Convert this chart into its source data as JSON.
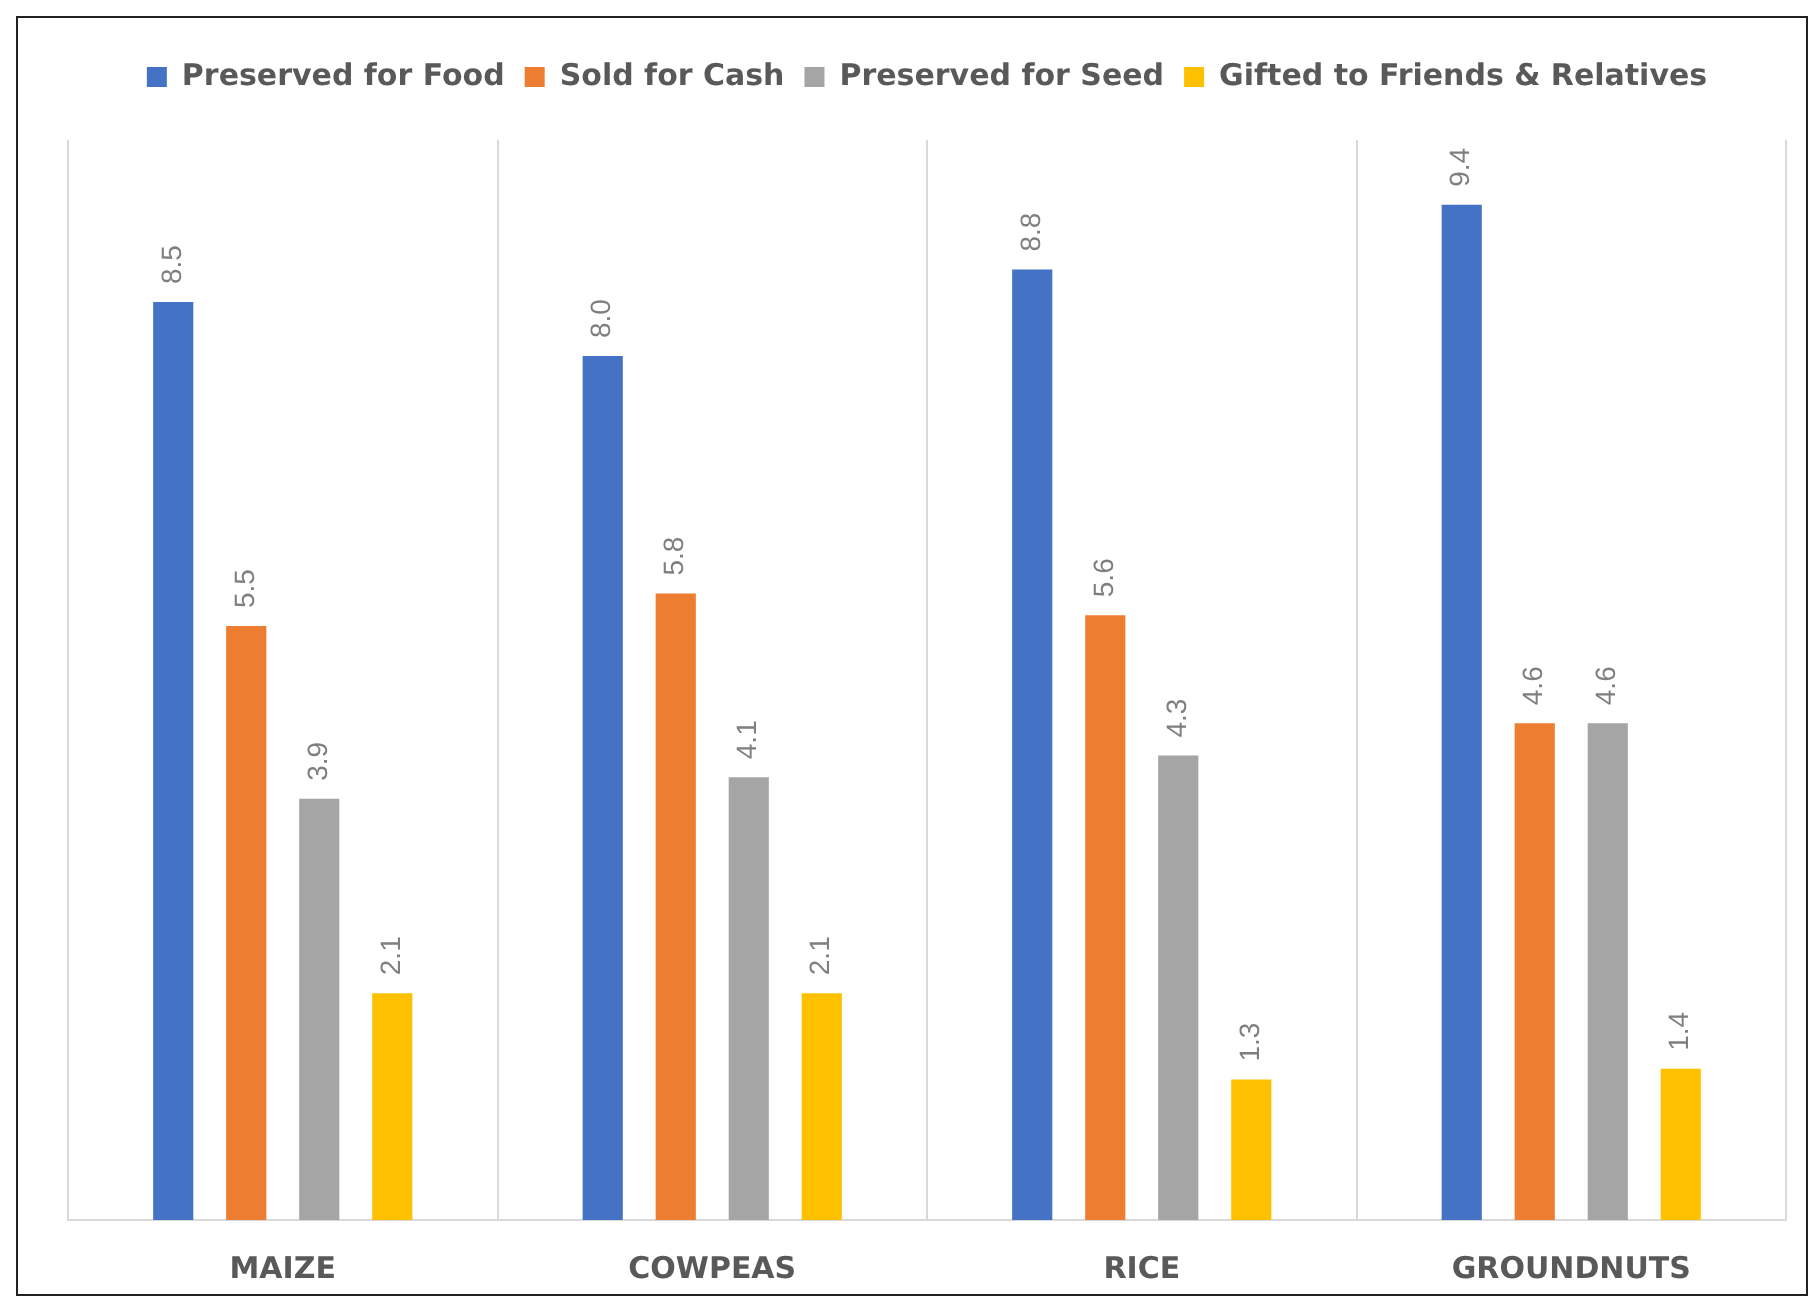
{
  "chart_data": {
    "type": "bar",
    "categories": [
      "MAIZE",
      "COWPEAS",
      "RICE",
      "GROUNDNUTS"
    ],
    "series": [
      {
        "name": "Preserved for Food",
        "color": "#4472c4",
        "values": [
          8.5,
          8.0,
          8.8,
          9.4
        ],
        "value_labels": [
          "8.5",
          "8.0",
          "8.8",
          "9.4"
        ]
      },
      {
        "name": "Sold for Cash",
        "color": "#ed7d31",
        "values": [
          5.5,
          5.8,
          5.6,
          4.6
        ],
        "value_labels": [
          "5.5",
          "5.8",
          "5.6",
          "4.6"
        ]
      },
      {
        "name": "Preserved for Seed",
        "color": "#a5a5a5",
        "values": [
          3.9,
          4.1,
          4.3,
          4.6
        ],
        "value_labels": [
          "3.9",
          "4.1",
          "4.3",
          "4.6"
        ]
      },
      {
        "name": "Gifted to Friends & Relatives",
        "color": "#ffc000",
        "values": [
          2.1,
          2.1,
          1.3,
          1.4
        ],
        "value_labels": [
          "2.1",
          "2.1",
          "1.3",
          "1.4"
        ]
      }
    ],
    "grid": "x",
    "legend": "top",
    "tick_labels": "x"
  }
}
